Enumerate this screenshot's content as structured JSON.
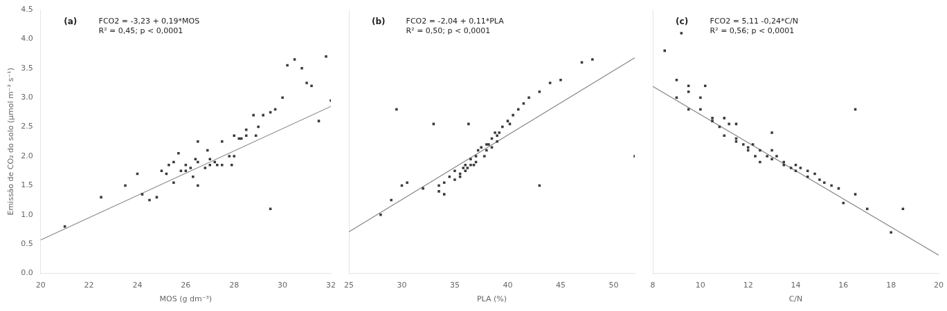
{
  "chart_data": [
    {
      "type": "scatter",
      "annotations": [
        "(a)",
        "FCO2 = -3,23 + 0,19*MOS",
        "R² = 0,45; p < 0,0001"
      ],
      "xlabel": "MOS (g dm⁻³)",
      "ylabel": "Emissão de CO₂ do solo (µmol m⁻² s⁻¹)",
      "xlim": [
        20,
        32
      ],
      "xticks": [
        20,
        22,
        24,
        26,
        28,
        30,
        32
      ],
      "ylim": [
        0,
        4.5
      ],
      "yticks": [
        {
          "value": 0,
          "label": "0.0"
        },
        0.5,
        {
          "value": 1,
          "label": "1.0"
        },
        1.5,
        {
          "value": 2,
          "label": "2.0"
        },
        2.5,
        {
          "value": 3,
          "label": "3.0"
        },
        3.5,
        {
          "value": 4,
          "label": "4.0"
        },
        4.5
      ],
      "grid": false,
      "series": [
        {
          "type": "scatter",
          "color": "#3a3a3a",
          "marker": "square",
          "x": [
            21.0,
            22.5,
            23.5,
            24.0,
            24.2,
            24.5,
            24.8,
            25.0,
            25.2,
            25.3,
            25.5,
            25.5,
            25.7,
            25.8,
            26.0,
            26.0,
            26.2,
            26.3,
            26.4,
            26.5,
            26.5,
            26.8,
            26.9,
            27.0,
            27.0,
            27.2,
            27.3,
            27.5,
            27.5,
            27.8,
            27.9,
            28.0,
            28.0,
            28.2,
            28.3,
            28.5,
            28.5,
            28.8,
            28.9,
            29.0,
            29.2,
            29.5,
            29.7,
            30.0,
            30.2,
            30.5,
            30.8,
            31.0,
            31.2,
            31.5,
            31.8,
            32.0,
            29.5,
            26.5
          ],
          "values": [
            0.8,
            1.3,
            1.5,
            1.7,
            1.35,
            1.25,
            1.3,
            1.75,
            1.7,
            1.85,
            1.9,
            1.55,
            2.05,
            1.75,
            1.75,
            1.85,
            1.8,
            1.65,
            1.95,
            1.5,
            1.9,
            1.8,
            2.1,
            1.85,
            1.95,
            1.9,
            1.85,
            2.25,
            1.85,
            2.0,
            1.85,
            2.35,
            2.0,
            2.3,
            2.3,
            2.45,
            2.35,
            2.7,
            2.35,
            2.5,
            2.7,
            2.75,
            2.8,
            3.0,
            3.55,
            3.65,
            3.5,
            3.25,
            3.2,
            2.6,
            3.7,
            2.95,
            1.1,
            2.25
          ]
        },
        {
          "type": "line",
          "color": "#888888",
          "x": [
            20,
            32
          ],
          "values": [
            0.57,
            2.85
          ]
        }
      ]
    },
    {
      "type": "scatter",
      "annotations": [
        "(b)",
        "FCO2 = -2,04 + 0,11*PLA",
        "R² = 0,50; p < 0,0001"
      ],
      "xlabel": "PLA (%)",
      "xlim": [
        25,
        52
      ],
      "xticks": [
        25,
        30,
        35,
        40,
        45,
        50
      ],
      "ylim": [
        0,
        4.5
      ],
      "yticks": [
        {
          "value": 0,
          "label": "0.0"
        },
        0.5,
        {
          "value": 1,
          "label": "1.0"
        },
        1.5,
        {
          "value": 2,
          "label": "2.0"
        },
        2.5,
        {
          "value": 3,
          "label": "3.0"
        },
        3.5,
        {
          "value": 4,
          "label": "4.0"
        },
        4.5
      ],
      "tick_labels": "x",
      "grid": false,
      "series": [
        {
          "type": "scatter",
          "color": "#3a3a3a",
          "marker": "square",
          "x": [
            28.0,
            29.0,
            30.0,
            30.5,
            32.0,
            33.5,
            33.5,
            34.0,
            34.0,
            34.5,
            35.0,
            35.0,
            35.5,
            35.5,
            35.8,
            36.0,
            36.0,
            36.2,
            36.5,
            36.5,
            36.8,
            37.0,
            37.0,
            37.2,
            37.5,
            37.8,
            38.0,
            38.0,
            38.2,
            38.5,
            38.5,
            38.8,
            39.0,
            39.0,
            39.2,
            39.5,
            40.0,
            40.2,
            40.5,
            41.0,
            41.5,
            42.0,
            43.0,
            44.0,
            45.0,
            47.0,
            48.0,
            52.0,
            29.5,
            43.0,
            33.0,
            36.3
          ],
          "values": [
            1.0,
            1.25,
            1.5,
            1.55,
            1.45,
            1.4,
            1.5,
            1.35,
            1.55,
            1.65,
            1.6,
            1.75,
            1.7,
            1.65,
            1.8,
            1.85,
            1.75,
            1.8,
            1.95,
            1.85,
            1.85,
            1.9,
            2.0,
            2.1,
            2.15,
            2.0,
            2.2,
            2.1,
            2.2,
            2.15,
            2.3,
            2.4,
            2.35,
            2.25,
            2.4,
            2.5,
            2.6,
            2.55,
            2.7,
            2.8,
            2.9,
            3.0,
            3.1,
            3.25,
            3.3,
            3.6,
            3.65,
            2.0,
            2.8,
            1.5,
            2.55,
            2.55
          ]
        },
        {
          "type": "line",
          "color": "#888888",
          "x": [
            25,
            52
          ],
          "values": [
            0.71,
            3.68
          ]
        }
      ]
    },
    {
      "type": "scatter",
      "annotations": [
        "(c)",
        "FCO2 = 5,11 -0,24*C/N",
        "R² = 0,56; p < 0,0001"
      ],
      "xlabel": "C/N",
      "xlim": [
        8,
        20
      ],
      "xticks": [
        8,
        10,
        12,
        14,
        16,
        18,
        20
      ],
      "ylim": [
        0,
        4.5
      ],
      "yticks": [
        {
          "value": 0,
          "label": "0.0"
        },
        0.5,
        {
          "value": 1,
          "label": "1.0"
        },
        1.5,
        {
          "value": 2,
          "label": "2.0"
        },
        2.5,
        {
          "value": 3,
          "label": "3.0"
        },
        3.5,
        {
          "value": 4,
          "label": "4.0"
        },
        4.5
      ],
      "tick_labels": "x",
      "grid": false,
      "series": [
        {
          "type": "scatter",
          "color": "#3a3a3a",
          "marker": "square",
          "x": [
            8.5,
            9.0,
            9.0,
            9.5,
            9.5,
            9.5,
            10.0,
            10.0,
            10.5,
            10.5,
            10.8,
            11.0,
            11.0,
            11.2,
            11.5,
            11.5,
            11.5,
            11.8,
            12.0,
            12.0,
            12.2,
            12.3,
            12.5,
            12.5,
            12.8,
            13.0,
            13.0,
            13.2,
            13.5,
            13.5,
            13.8,
            14.0,
            14.0,
            14.2,
            14.5,
            14.5,
            14.8,
            15.0,
            15.2,
            15.5,
            15.8,
            16.0,
            16.5,
            17.0,
            18.0,
            18.5,
            16.5,
            13.0,
            9.2,
            10.2
          ],
          "values": [
            3.8,
            3.3,
            3.0,
            3.1,
            3.2,
            2.8,
            2.8,
            3.0,
            2.6,
            2.65,
            2.5,
            2.65,
            2.35,
            2.55,
            2.3,
            2.25,
            2.55,
            2.2,
            2.15,
            2.1,
            2.2,
            2.0,
            2.1,
            1.9,
            2.0,
            1.95,
            2.1,
            2.0,
            1.85,
            1.9,
            1.8,
            1.85,
            1.75,
            1.8,
            1.75,
            1.65,
            1.7,
            1.6,
            1.55,
            1.5,
            1.45,
            1.2,
            1.35,
            1.1,
            0.7,
            1.1,
            2.8,
            2.4,
            4.1,
            3.2
          ]
        },
        {
          "type": "line",
          "color": "#888888",
          "x": [
            8,
            20
          ],
          "values": [
            3.19,
            0.31
          ]
        }
      ]
    }
  ]
}
